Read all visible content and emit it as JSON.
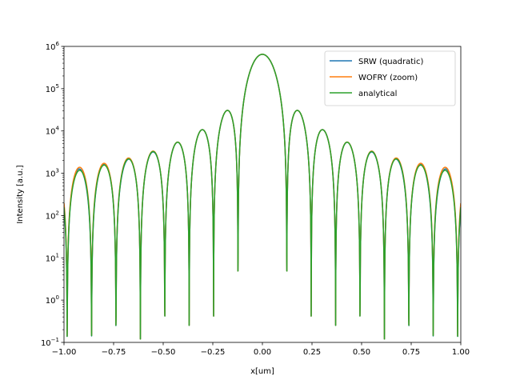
{
  "chart_data": {
    "type": "line",
    "xlabel": "x[um]",
    "ylabel": "Intensity [a.u.]",
    "xlim": [
      -1.0,
      1.0
    ],
    "ylim": [
      0.1,
      1000000
    ],
    "yscale": "log",
    "grid": false,
    "legend_position": "top-right",
    "x_ticks": [
      -1.0,
      -0.75,
      -0.5,
      -0.25,
      0.0,
      0.25,
      0.5,
      0.75,
      1.0
    ],
    "x_tick_labels": [
      "−1.00",
      "−0.75",
      "−0.50",
      "−0.25",
      "0.00",
      "0.25",
      "0.50",
      "0.75",
      "1.00"
    ],
    "y_ticks": [
      0.1,
      1,
      10,
      100,
      1000,
      10000,
      100000,
      1000000
    ],
    "y_tick_labels": [
      {
        "base": "10",
        "exp": "−1"
      },
      {
        "base": "10",
        "exp": "0"
      },
      {
        "base": "10",
        "exp": "1"
      },
      {
        "base": "10",
        "exp": "2"
      },
      {
        "base": "10",
        "exp": "3"
      },
      {
        "base": "10",
        "exp": "4"
      },
      {
        "base": "10",
        "exp": "5"
      },
      {
        "base": "10",
        "exp": "6"
      }
    ],
    "model": {
      "description": "sinc^2 diffraction pattern",
      "peak": 650000,
      "first_zero": 0.123,
      "floor": 0.12
    },
    "series": [
      {
        "name": "SRW (quadratic)",
        "color": "#1f77b4"
      },
      {
        "name": "WOFRY (zoom)",
        "color": "#ff7f0e"
      },
      {
        "name": "analytical",
        "color": "#2ca02c"
      }
    ]
  }
}
